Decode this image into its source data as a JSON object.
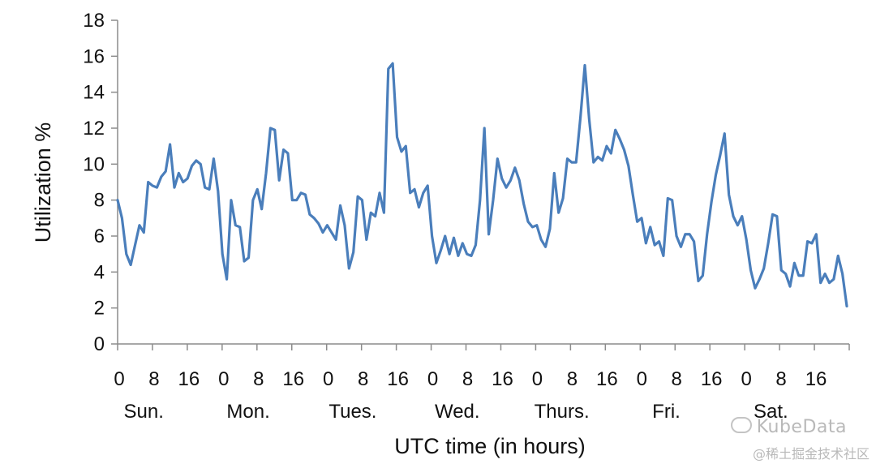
{
  "chart_data": {
    "type": "line",
    "xlabel": "UTC time (in hours)",
    "ylabel": "Utilization %",
    "ylim": [
      0,
      18
    ],
    "yticks": [
      "0",
      "2",
      "4",
      "6",
      "8",
      "10",
      "12",
      "14",
      "16",
      "18"
    ],
    "x_hour_ticks": [
      "0",
      "8",
      "16",
      "0",
      "8",
      "16",
      "0",
      "8",
      "16",
      "0",
      "8",
      "16",
      "0",
      "8",
      "16",
      "0",
      "8",
      "16",
      "0",
      "8",
      "16"
    ],
    "day_labels": [
      "Sun.",
      "Mon.",
      "Tues.",
      "Wed.",
      "Thurs.",
      "Fri.",
      "Sat."
    ],
    "grid": false,
    "legend": "none",
    "line_color": "#4a7ebb",
    "series": [
      {
        "values": [
          8.0,
          7.0,
          5.0,
          4.4,
          5.5,
          6.6,
          6.2,
          9.0,
          8.8,
          8.7,
          9.3,
          9.6,
          11.1,
          8.7,
          9.5,
          9.0,
          9.2,
          9.9,
          10.2,
          10.0,
          8.7,
          8.6,
          10.3,
          8.5,
          5.0,
          3.6,
          8.0,
          6.6,
          6.5,
          4.6,
          4.8,
          8.0,
          8.6,
          7.5,
          9.5,
          12.0,
          11.9,
          9.1,
          10.8,
          10.6,
          8.0,
          8.0,
          8.4,
          8.3,
          7.2,
          7.0,
          6.7,
          6.2,
          6.6,
          6.2,
          5.8,
          7.7,
          6.6,
          4.2,
          5.1,
          8.2,
          8.0,
          5.8,
          7.3,
          7.1,
          8.4,
          7.3,
          15.3,
          15.6,
          11.5,
          10.7,
          11.0,
          8.4,
          8.6,
          7.6,
          8.4,
          8.8,
          6.0,
          4.5,
          5.2,
          6.0,
          5.0,
          5.9,
          4.9,
          5.6,
          5.0,
          4.9,
          5.5,
          8.0,
          12.0,
          6.1,
          8.0,
          10.3,
          9.2,
          8.7,
          9.1,
          9.8,
          9.1,
          7.8,
          6.8,
          6.5,
          6.6,
          5.8,
          5.4,
          6.4,
          9.5,
          7.3,
          8.1,
          10.3,
          10.1,
          10.1,
          12.6,
          15.5,
          12.5,
          10.1,
          10.4,
          10.2,
          11.0,
          10.6,
          11.9,
          11.4,
          10.8,
          9.9,
          8.3,
          6.8,
          7.0,
          5.6,
          6.5,
          5.5,
          5.7,
          4.9,
          8.1,
          8.0,
          6.0,
          5.4,
          6.1,
          6.1,
          5.7,
          3.5,
          3.8,
          6.1,
          7.9,
          9.4,
          10.5,
          11.7,
          8.3,
          7.1,
          6.6,
          7.1,
          5.8,
          4.1,
          3.1,
          3.6,
          4.2,
          5.6,
          7.2,
          7.1,
          4.1,
          3.9,
          3.2,
          4.5,
          3.8,
          3.8,
          5.7,
          5.6,
          6.1,
          3.4,
          3.9,
          3.4,
          3.6,
          4.9,
          3.9,
          2.1
        ]
      }
    ]
  },
  "watermark": {
    "brand": "KubeData",
    "community": "@稀土掘金技术社区"
  }
}
